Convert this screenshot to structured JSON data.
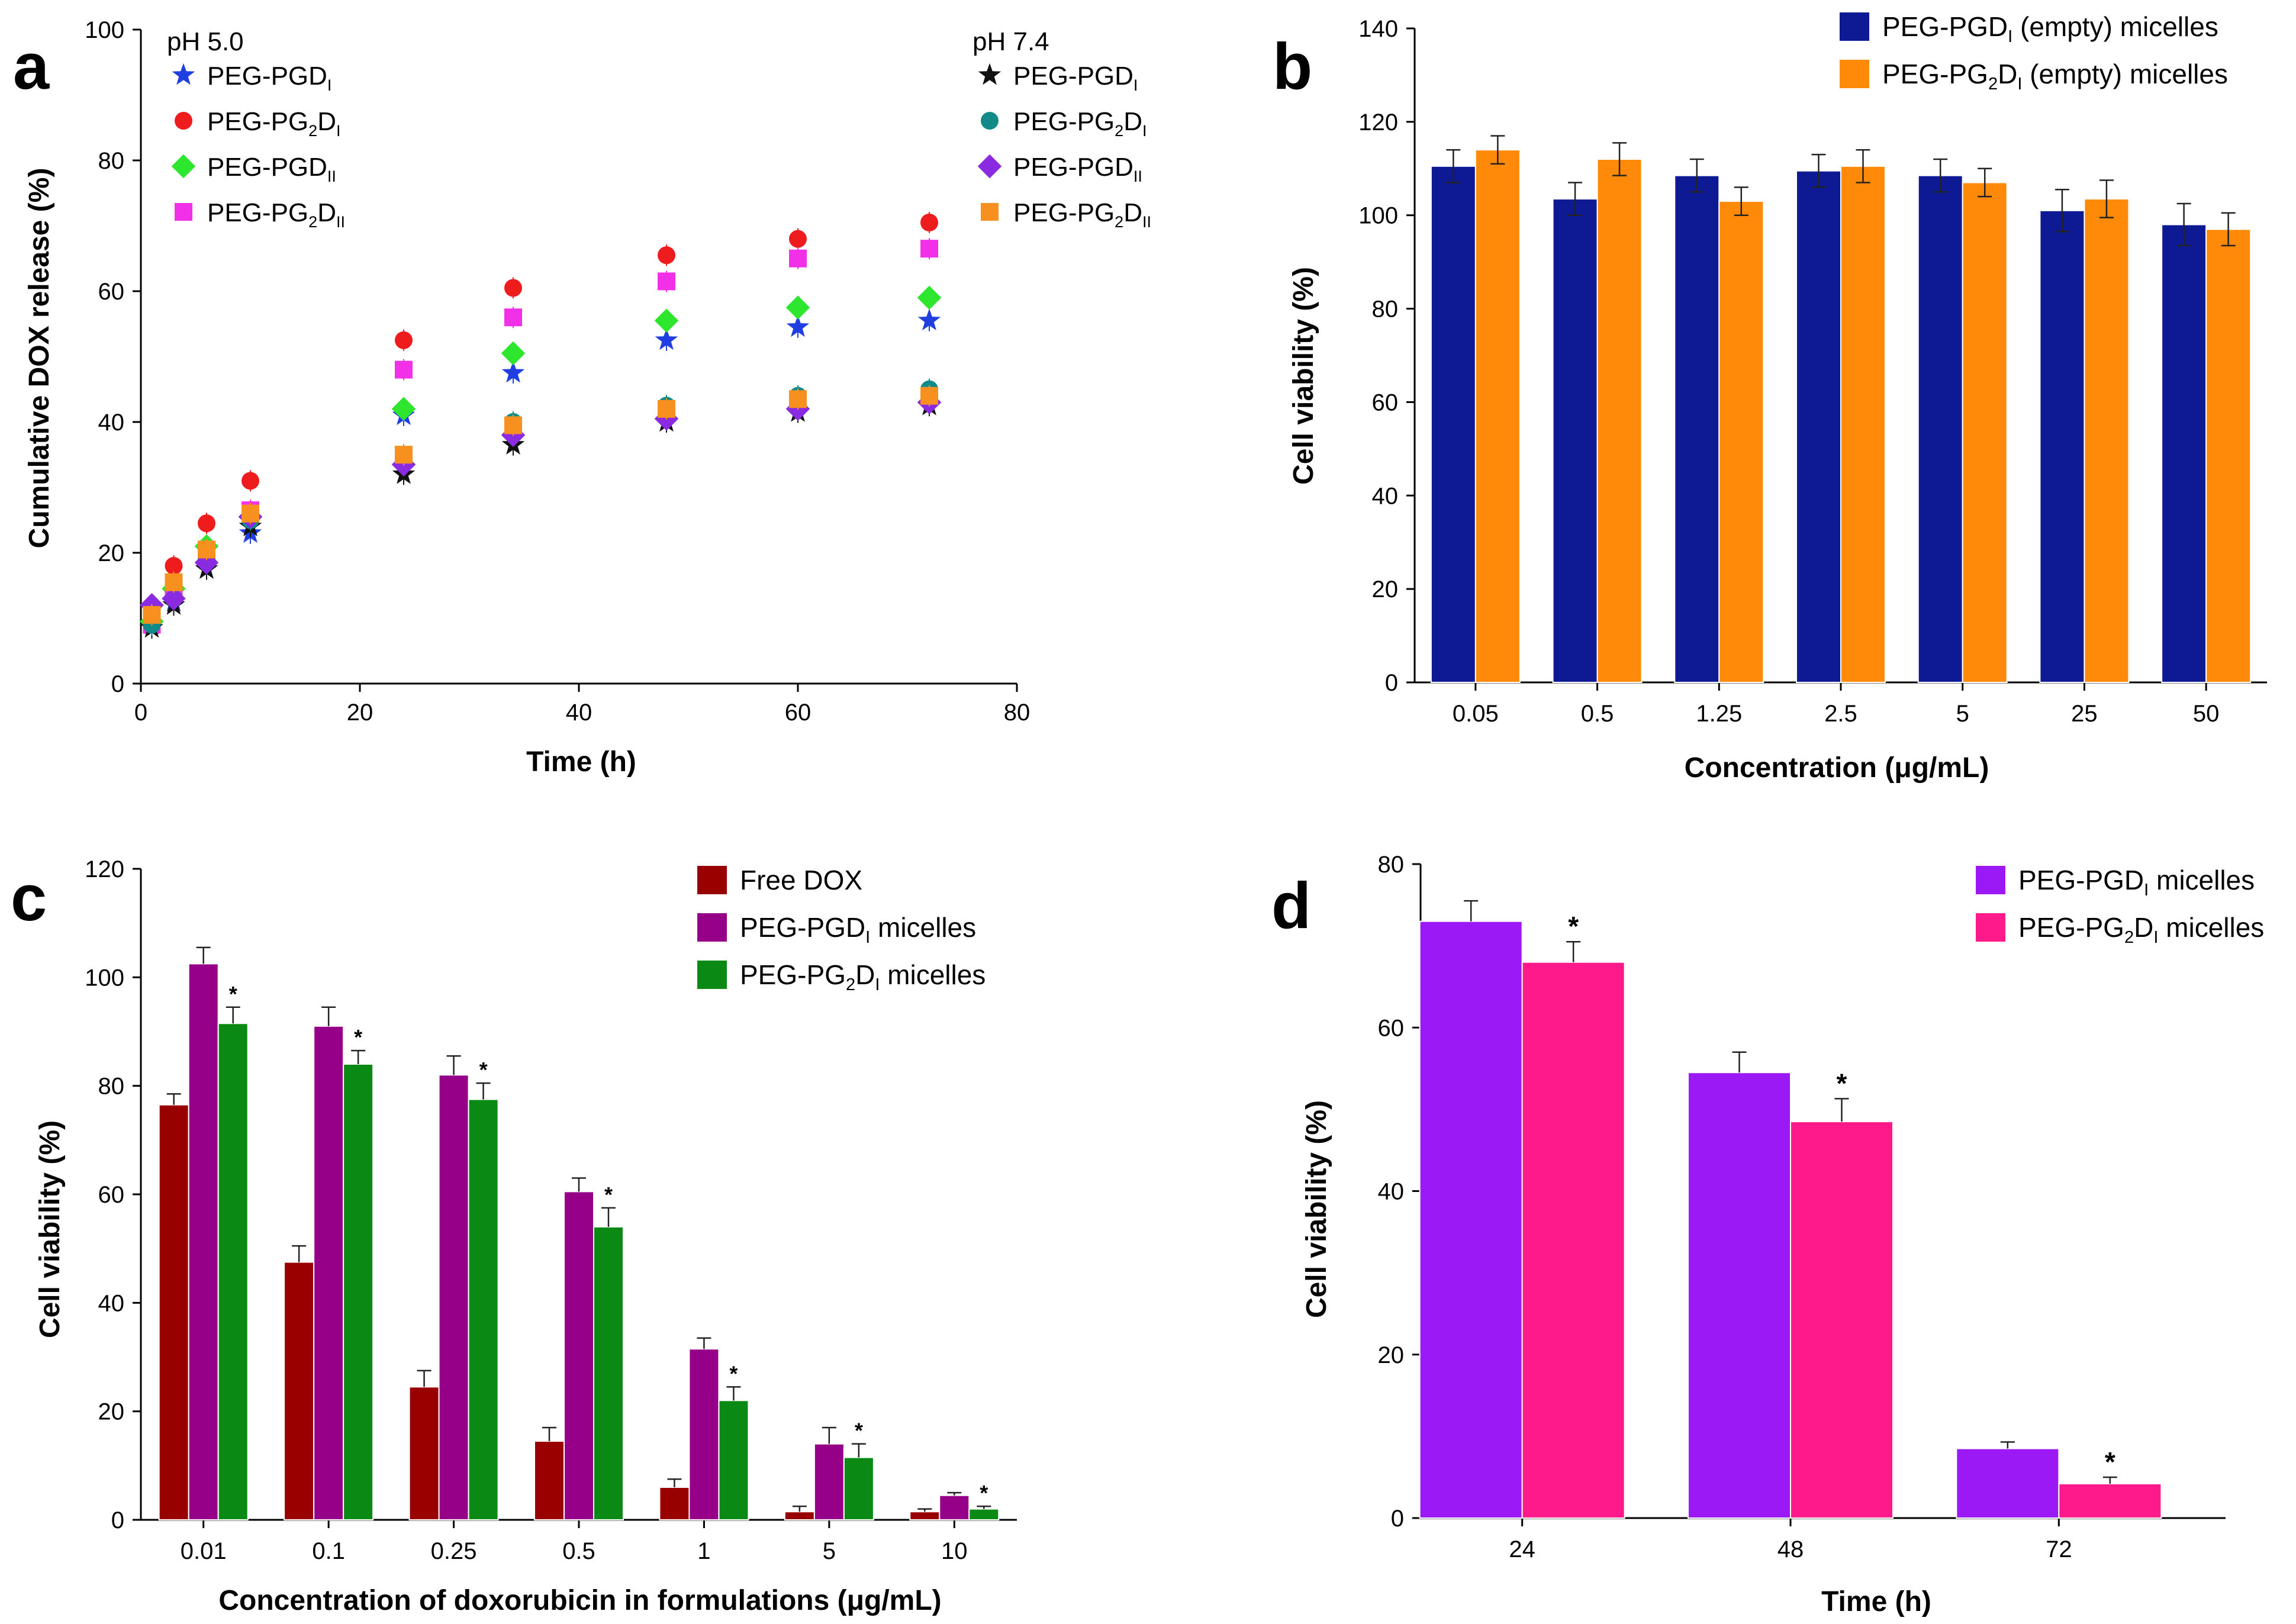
{
  "chart_data": [
    {
      "panel": "a",
      "type": "scatter",
      "xlabel": "Time (h)",
      "ylabel": "Cumulative DOX release (%)",
      "xlim": [
        0,
        80
      ],
      "ylim": [
        0,
        100
      ],
      "xticks": [
        0,
        20,
        40,
        60,
        80
      ],
      "yticks": [
        0,
        20,
        40,
        60,
        80,
        100
      ],
      "legend_groups": [
        {
          "title": "pH 5.0",
          "position": "top-left"
        },
        {
          "title": "pH 7.4",
          "position": "top-right"
        }
      ],
      "x": [
        1,
        3,
        6,
        10,
        24,
        34,
        48,
        60,
        72
      ],
      "series": [
        {
          "group": "pH 5.0",
          "name": "PEG-PGD",
          "sub": "I",
          "marker": "star",
          "color": "#1f3fe0",
          "values": [
            9,
            12.5,
            17.5,
            23,
            41,
            47.5,
            52.5,
            54.5,
            55.5
          ]
        },
        {
          "group": "pH 5.0",
          "name": "PEG-PG",
          "sub1": "2",
          "mid": "D",
          "sub": "I",
          "marker": "circle",
          "color": "#ee1c1c",
          "values": [
            10.5,
            18,
            24.5,
            31,
            52.5,
            60.5,
            65.5,
            68,
            70.5
          ]
        },
        {
          "group": "pH 5.0",
          "name": "PEG-PGD",
          "sub": "II",
          "marker": "diamond",
          "color": "#2ee62e",
          "values": [
            9.5,
            14.5,
            21,
            25.5,
            42,
            50.5,
            55.5,
            57.5,
            59
          ]
        },
        {
          "group": "pH 5.0",
          "name": "PEG-PG",
          "sub1": "2",
          "mid": "D",
          "sub": "II",
          "marker": "square",
          "color": "#f230e8",
          "values": [
            9,
            13.5,
            19.5,
            26.5,
            48,
            56,
            61.5,
            65,
            66.5
          ]
        },
        {
          "group": "pH 7.4",
          "name": "PEG-PGD",
          "sub": "I",
          "marker": "star",
          "color": "#111111",
          "values": [
            8.5,
            12,
            17.5,
            24,
            32,
            36.5,
            40,
            41.5,
            42.5
          ]
        },
        {
          "group": "pH 7.4",
          "name": "PEG-PG",
          "sub1": "2",
          "mid": "D",
          "sub": "I",
          "marker": "circle",
          "color": "#138a8a",
          "values": [
            9,
            13,
            19,
            25,
            34,
            40,
            42.5,
            44,
            45
          ]
        },
        {
          "group": "pH 7.4",
          "name": "PEG-PGD",
          "sub": "II",
          "marker": "diamond",
          "color": "#8a2be2",
          "values": [
            12,
            13,
            18.5,
            25.5,
            33.5,
            38,
            40.5,
            42,
            43
          ]
        },
        {
          "group": "pH 7.4",
          "name": "PEG-PG",
          "sub1": "2",
          "mid": "D",
          "sub": "II",
          "marker": "square",
          "color": "#f7901e",
          "values": [
            10.5,
            15.5,
            20.5,
            26,
            35,
            39.5,
            42,
            43.5,
            44
          ]
        }
      ]
    },
    {
      "panel": "b",
      "type": "bar",
      "xlabel": "Concentration (μg/mL)",
      "ylabel": "Cell viability (%)",
      "ylim": [
        0,
        140
      ],
      "yticks": [
        0,
        20,
        40,
        60,
        80,
        100,
        120,
        140
      ],
      "legend": "top-right",
      "categories": [
        "0.05",
        "0.5",
        "1.25",
        "2.5",
        "5",
        "25",
        "50"
      ],
      "series": [
        {
          "name": "PEG-PGD",
          "sub": "I",
          "suffix": " (empty) micelles",
          "color": "#0e1a94",
          "values": [
            110.5,
            103.5,
            108.5,
            109.5,
            108.5,
            101,
            98
          ],
          "errors": [
            3.5,
            3.5,
            3.5,
            3.5,
            3.5,
            4.5,
            4.5
          ]
        },
        {
          "name": "PEG-PG",
          "sub1": "2",
          "mid": "D",
          "sub": "I",
          "suffix": " (empty) micelles",
          "color": "#ff8a0a",
          "values": [
            114,
            112,
            103,
            110.5,
            107,
            103.5,
            97
          ],
          "errors": [
            3,
            3.5,
            3,
            3.5,
            3,
            4,
            3.5
          ]
        }
      ]
    },
    {
      "panel": "c",
      "type": "bar",
      "xlabel": "Concentration of doxorubicin in formulations (μg/mL)",
      "ylabel": "Cell viability (%)",
      "ylim": [
        0,
        120
      ],
      "yticks": [
        0,
        20,
        40,
        60,
        80,
        100,
        120
      ],
      "legend": "top-right",
      "categories": [
        "0.01",
        "0.1",
        "0.25",
        "0.5",
        "1",
        "5",
        "10"
      ],
      "significance_mark": "*",
      "significance_series": 2,
      "series": [
        {
          "name": "Free DOX",
          "color": "#990000",
          "values": [
            76.5,
            47.5,
            24.5,
            14.5,
            6,
            1.5,
            1.5
          ],
          "errors": [
            2,
            3,
            3,
            2.5,
            1.5,
            1,
            0.5
          ]
        },
        {
          "name": "PEG-PGD",
          "sub": "I",
          "suffix": " micelles",
          "color": "#960088",
          "values": [
            102.5,
            91,
            82,
            60.5,
            31.5,
            14,
            4.5
          ],
          "errors": [
            3,
            3.5,
            3.5,
            2.5,
            2,
            3,
            0.5
          ]
        },
        {
          "name": "PEG-PG",
          "sub1": "2",
          "mid": "D",
          "sub": "I",
          "suffix": " micelles",
          "color": "#0a8a14",
          "values": [
            91.5,
            84,
            77.5,
            54,
            22,
            11.5,
            2
          ],
          "errors": [
            3,
            2.5,
            3,
            3.5,
            2.5,
            2.5,
            0.5
          ]
        }
      ]
    },
    {
      "panel": "d",
      "type": "bar",
      "xlabel": "Time (h)",
      "ylabel": "Cell viability (%)",
      "ylim": [
        0,
        80
      ],
      "yticks": [
        0,
        20,
        40,
        60,
        80
      ],
      "legend": "top-right",
      "categories": [
        "24",
        "48",
        "72"
      ],
      "significance_mark": "*",
      "significance_series": 1,
      "series": [
        {
          "name": "PEG-PGD",
          "sub": "I",
          "suffix": "  micelles",
          "color": "#9b19f5",
          "values": [
            73,
            54.5,
            8.5
          ],
          "errors": [
            2.5,
            2.5,
            0.8
          ]
        },
        {
          "name": "PEG-PG",
          "sub1": "2",
          "mid": "D",
          "sub": "I",
          "suffix": " micelles",
          "color": "#ff1a8c",
          "values": [
            68,
            48.5,
            4.2
          ],
          "errors": [
            2.5,
            2.8,
            0.8
          ]
        }
      ]
    }
  ]
}
